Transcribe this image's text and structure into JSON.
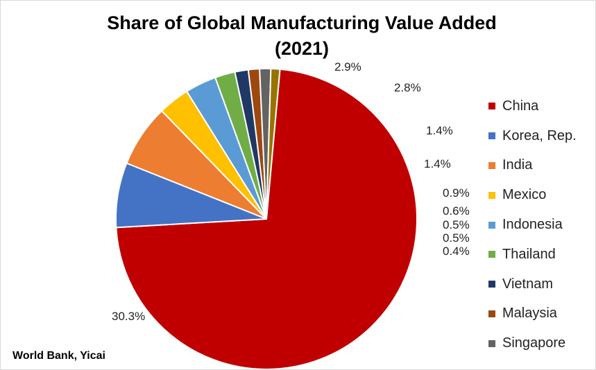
{
  "chart": {
    "title_line1": "Share of Global Manufacturing Value Added",
    "title_line2": "(2021)",
    "source": "World Bank, Yicai"
  },
  "chart_data": {
    "type": "pie",
    "title": "Share of Global Manufacturing Value Added (2021)",
    "unit": "%",
    "legend_position": "right",
    "slices": [
      {
        "name": "China",
        "value": 30.3,
        "label": "30.3%",
        "color": "#C00000"
      },
      {
        "name": "Korea, Rep.",
        "value": 2.9,
        "label": "2.9%",
        "color": "#4472C4"
      },
      {
        "name": "India",
        "value": 2.8,
        "label": "2.8%",
        "color": "#ED7D31"
      },
      {
        "name": "Mexico",
        "value": 1.4,
        "label": "1.4%",
        "color": "#FFC000"
      },
      {
        "name": "Indonesia",
        "value": 1.4,
        "label": "1.4%",
        "color": "#5B9BD5"
      },
      {
        "name": "Thailand",
        "value": 0.9,
        "label": "0.9%",
        "color": "#70AD47"
      },
      {
        "name": "Vietnam",
        "value": 0.6,
        "label": "0.6%",
        "color": "#203864"
      },
      {
        "name": "Malaysia",
        "value": 0.5,
        "label": "0.5%",
        "color": "#9E480E"
      },
      {
        "name": "Singapore",
        "value": 0.5,
        "label": "0.5%",
        "color": "#636363"
      },
      {
        "name": "",
        "value": 0.4,
        "label": "0.4%",
        "color": "#997300"
      }
    ]
  }
}
